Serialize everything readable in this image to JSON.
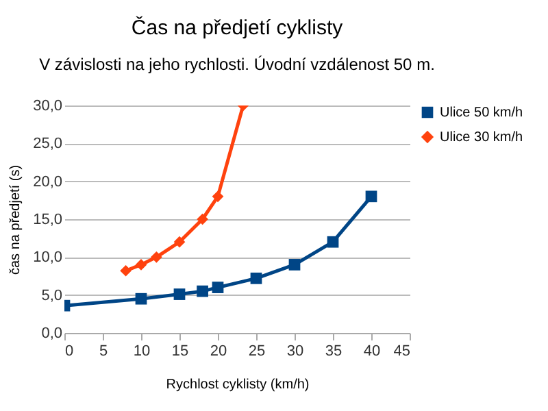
{
  "chart_data": {
    "type": "line",
    "title": "Čas na předjetí cyklisty",
    "subtitle": "V závislosti na jeho rychlosti. Úvodní vzdálenost 50 m.",
    "xlabel": "Rychlost cyklisty (km/h)",
    "ylabel": "čas na předjetí (s)",
    "series": [
      {
        "name": "Ulice 50 km/h",
        "color": "#004586",
        "marker": "square",
        "x": [
          0,
          10,
          15,
          18,
          20,
          25,
          30,
          35,
          40
        ],
        "values": [
          3.6,
          4.5,
          5.1,
          5.5,
          6.0,
          7.2,
          9.0,
          12.0,
          18.0
        ]
      },
      {
        "name": "Ulice 30 km/h",
        "color": "#ff420e",
        "marker": "diamond",
        "x": [
          8,
          10,
          12,
          15,
          18,
          20,
          23.3
        ],
        "values": [
          8.2,
          9.0,
          10.0,
          12.0,
          15.0,
          18.0,
          30.0
        ]
      }
    ],
    "xlim": [
      0,
      45
    ],
    "xticks": [
      0,
      5,
      10,
      15,
      20,
      25,
      30,
      35,
      40,
      45
    ],
    "ylim": [
      0,
      30
    ],
    "yticks": [
      {
        "value": 0,
        "label": "0,0"
      },
      {
        "value": 5,
        "label": "5,0"
      },
      {
        "value": 10,
        "label": "10,0"
      },
      {
        "value": 15,
        "label": "15,0"
      },
      {
        "value": 20,
        "label": "20,0"
      },
      {
        "value": 25,
        "label": "25,0"
      },
      {
        "value": 30,
        "label": "30,0"
      }
    ],
    "grid": "y",
    "legend": "right",
    "line_style": "solid"
  }
}
